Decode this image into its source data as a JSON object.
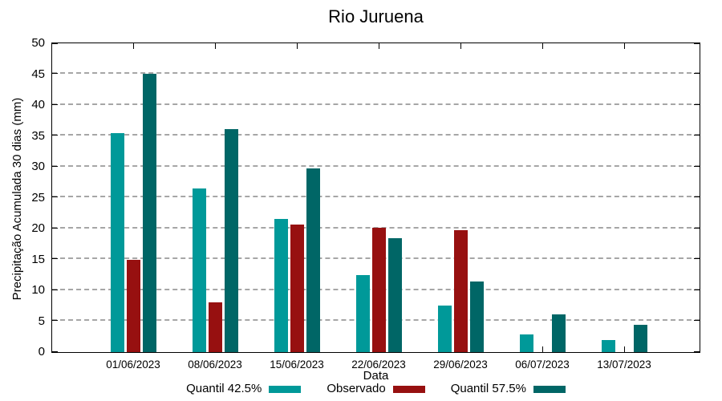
{
  "chart_data": {
    "type": "bar",
    "title": "Rio Juruena",
    "xlabel": "Data",
    "ylabel": "Precipitação Acumulada 30 dias (mm)",
    "ylim": [
      0,
      50
    ],
    "ytick_step": 5,
    "yticks": [
      0,
      5,
      10,
      15,
      20,
      25,
      30,
      35,
      40,
      45,
      50
    ],
    "grid": "horizontal-dashed",
    "gridline_color": "#a6a6a6",
    "axis_color": "#000000",
    "background_color": "#ffffff",
    "legend_position": "bottom-center",
    "categories": [
      "01/06/2023",
      "08/06/2023",
      "15/06/2023",
      "22/06/2023",
      "29/06/2023",
      "06/07/2023",
      "13/07/2023"
    ],
    "series": [
      {
        "name": "Quantil 42.5%",
        "color": "#009999",
        "values": [
          35.4,
          26.5,
          21.5,
          12.5,
          7.6,
          2.8,
          2.0
        ]
      },
      {
        "name": "Observado",
        "color": "#971010",
        "values": [
          15.0,
          8.1,
          20.7,
          20.2,
          19.7,
          null,
          null
        ]
      },
      {
        "name": "Quantil 57.5%",
        "color": "#006666",
        "values": [
          45.1,
          36.1,
          29.8,
          18.5,
          11.4,
          6.1,
          4.4
        ]
      }
    ]
  }
}
